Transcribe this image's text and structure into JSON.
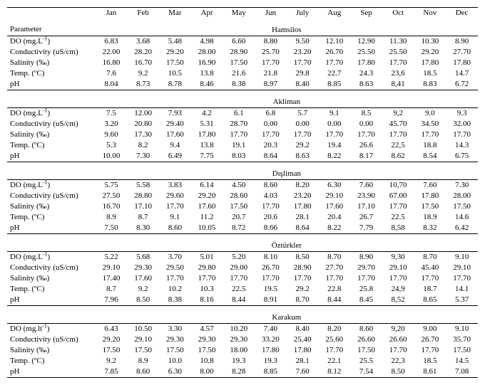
{
  "months": [
    "Jan",
    "Feb",
    "Mar",
    "Apr",
    "May",
    "Jun",
    "July",
    "Aug",
    "Sep",
    "Oct",
    "Nov",
    "Dec"
  ],
  "param_header": "Parameter",
  "param_labels": [
    "DO (mg.L<sup>-1</sup>)",
    "Conductivity (uS/cm)",
    "Salinity (‰)",
    "Temp. (ºC)",
    "pH"
  ],
  "param_labels_karakum": [
    "DO (mg.lt<sup>-1</sup>)",
    "Conductivity (uS/cm)",
    "Salinity (‰)",
    "Temp. (ºC)",
    "pH"
  ],
  "stations": [
    {
      "name": "Hamsilos",
      "rows": [
        [
          "6.83",
          "3.68",
          "5.48",
          "4.98",
          "6.60",
          "8.80",
          "9.50",
          "12.10",
          "12.90",
          "11.30",
          "10.30",
          "8.90"
        ],
        [
          "22.00",
          "28.20",
          "29.20",
          "28.00",
          "28.90",
          "25.70",
          "23.20",
          "26.70",
          "25.50",
          "25.50",
          "29.20",
          "27.70"
        ],
        [
          "16.80",
          "16.70",
          "17.50",
          "16.90",
          "17.50",
          "17.70",
          "17.70",
          "17.70",
          "17.80",
          "17.70",
          "17.80",
          "17.80"
        ],
        [
          "7.6",
          "9.2",
          "10.5",
          "13.8",
          "21.6",
          "21.8",
          "29.8",
          "22.7",
          "24.3",
          "23,6",
          "18.5",
          "14.7"
        ],
        [
          "8.04",
          "8.73",
          "8.78",
          "8.46",
          "8.38",
          "8.97",
          "8.40",
          "8.85",
          "8.63",
          "8,41",
          "8.83",
          "6.72"
        ]
      ]
    },
    {
      "name": "Akliman",
      "rows": [
        [
          "7.5",
          "12.00",
          "7.93",
          "4.2",
          "6.1",
          "6.8",
          "5.7",
          "9.1",
          "8.5",
          "9,2",
          "9.0",
          "9.3"
        ],
        [
          "3.20",
          "20.80",
          "29.40",
          "5.31",
          "28.70",
          "0.00",
          "0.00",
          "0.00",
          "0.00",
          "45.70",
          "34.50",
          "32.00"
        ],
        [
          "9.60",
          "17.30",
          "17.60",
          "17.80",
          "17.70",
          "17.70",
          "17.70",
          "17.70",
          "17.70",
          "17.70",
          "17.70",
          "17.70"
        ],
        [
          "5.3",
          "8.2",
          "9.4",
          "13.8",
          "19.1",
          "20.3",
          "29.2",
          "19.4",
          "26.6",
          "22,5",
          "18.8",
          "14.3"
        ],
        [
          "10.00",
          "7.30",
          "6.49",
          "7.75",
          "8.03",
          "8.64",
          "8.63",
          "8.22",
          "8.17",
          "8.62",
          "8.54",
          "6.75"
        ]
      ]
    },
    {
      "name": "Dışliman",
      "rows": [
        [
          "5.75",
          "5.58",
          "3.83",
          "6.14",
          "4.50",
          "8.60",
          "8.20",
          "6.30",
          "7.60",
          "10,70",
          "7.60",
          "7.30"
        ],
        [
          "27.50",
          "28.80",
          "29.60",
          "29.20",
          "28.60",
          "4.03",
          "23.20",
          "29.10",
          "23.90",
          "67.00",
          "17.80",
          "28.00"
        ],
        [
          "16.70",
          "17.10",
          "17.70",
          "17.60",
          "17.50",
          "17.70",
          "17.80",
          "17.60",
          "17.10",
          "17.70",
          "17.50",
          "17.50"
        ],
        [
          "8.9",
          "8.7",
          "9.1",
          "11.2",
          "20.7",
          "20.6",
          "28.1",
          "20.4",
          "26.7",
          "22.5",
          "18.9",
          "14.6"
        ],
        [
          "7.50",
          "8.30",
          "8.60",
          "10.05",
          "8.72",
          "8.66",
          "8.64",
          "8.22",
          "7.79",
          "8,58",
          "8.32",
          "6.42"
        ]
      ]
    },
    {
      "name": "Öztürkler",
      "rows": [
        [
          "5.22",
          "5.68",
          "3.70",
          "5.01",
          "5.20",
          "8.10",
          "8.50",
          "8.70",
          "8.90",
          "9,30",
          "8.70",
          "9.10"
        ],
        [
          "29.10",
          "29.30",
          "29.50",
          "29.80",
          "29.00",
          "26.70",
          "28.90",
          "27.70",
          "29.70",
          "29.10",
          "45.40",
          "29.10"
        ],
        [
          "17.40",
          "17.60",
          "17.70",
          "17.70",
          "17.70",
          "17.70",
          "17.70",
          "17.70",
          "17.70",
          "17.70",
          "17.70",
          "17.70"
        ],
        [
          "8.7",
          "9.2",
          "10.2",
          "10.3",
          "22.5",
          "19.5",
          "29.2",
          "22.8",
          "25.8",
          "24,9",
          "18.7",
          "14.1"
        ],
        [
          "7.96",
          "8.50",
          "8.38",
          "8.16",
          "8.44",
          "8.91",
          "8.70",
          "8.44",
          "8.45",
          "8,52",
          "8.65",
          "5.37"
        ]
      ]
    },
    {
      "name": "Karakum",
      "rows": [
        [
          "6.43",
          "10.50",
          "3.30",
          "4.57",
          "10.20",
          "7.40",
          "8.40",
          "8.20",
          "8.60",
          "9,20",
          "9.00",
          "9.10"
        ],
        [
          "29.20",
          "29.10",
          "29.30",
          "29.30",
          "29.30",
          "33.20",
          "25.40",
          "25.60",
          "26.60",
          "26.60",
          "26.70",
          "35.70"
        ],
        [
          "17.50",
          "17.50",
          "17.50",
          "17.50",
          "18.00",
          "17.80",
          "17.80",
          "17.70",
          "17.50",
          "17.70",
          "17.70",
          "17.50"
        ],
        [
          "9.2",
          "8.9",
          "10.0",
          "10.8",
          "19.3",
          "19.3",
          "28.1",
          "22.1",
          "25.5",
          "22,3",
          "18.5",
          "14.5"
        ],
        [
          "7.85",
          "8.60",
          "6.30",
          "8.00",
          "8.28",
          "8.85",
          "7.60",
          "8.12",
          "7.54",
          "8.50",
          "8.61",
          "7.08"
        ]
      ]
    }
  ]
}
